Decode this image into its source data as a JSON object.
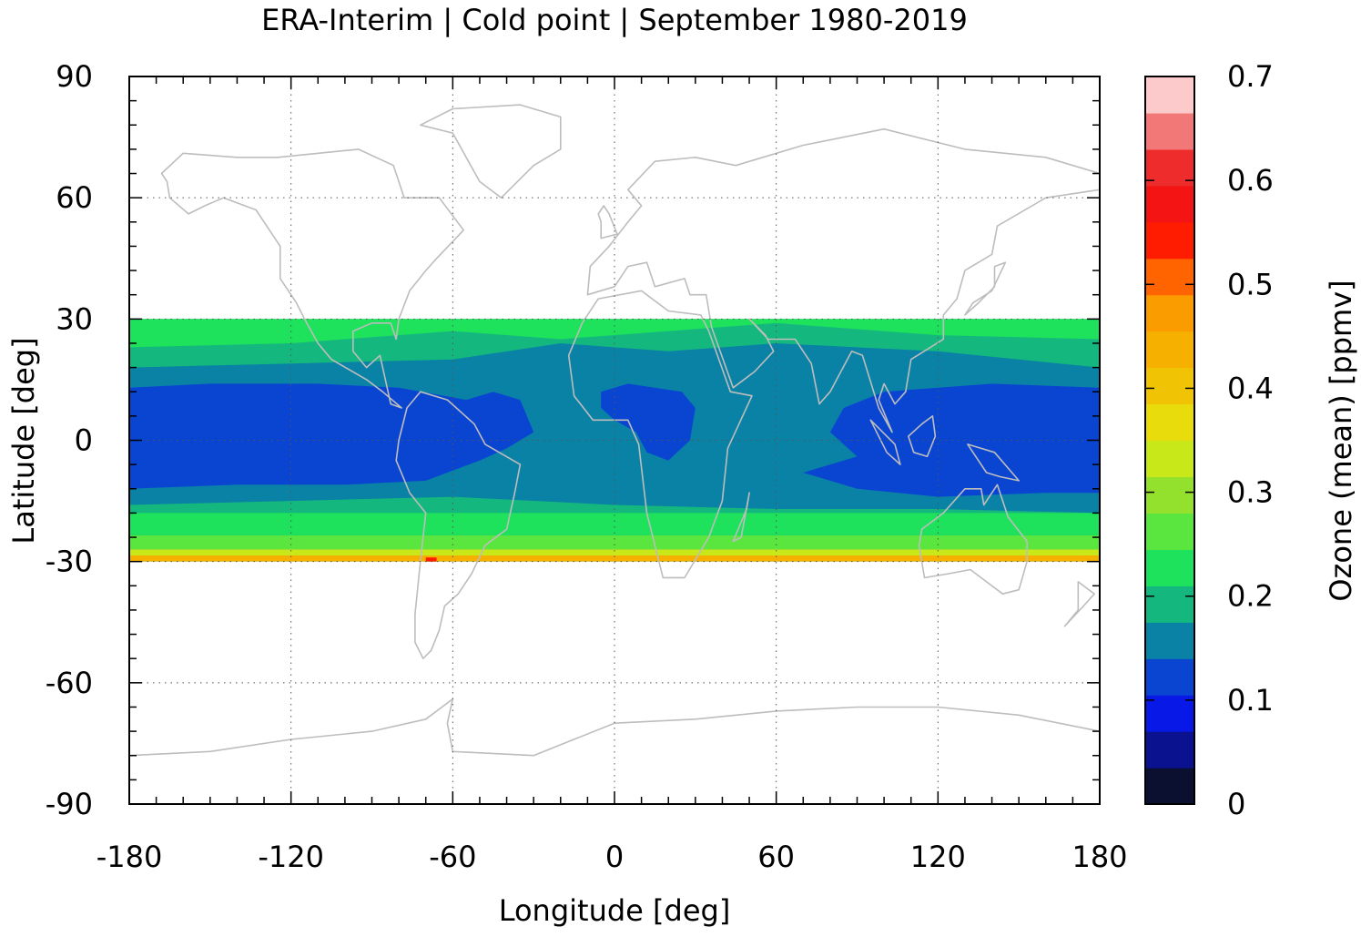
{
  "chart_data": {
    "type": "heatmap",
    "title": "ERA-Interim | Cold point | September 1980-2019",
    "xlabel": "Longitude [deg]",
    "ylabel": "Latitude [deg]",
    "colorbar_label": "Ozone (mean) [ppmv]",
    "xlim": [
      -180,
      180
    ],
    "ylim": [
      -90,
      90
    ],
    "x_ticks": [
      "-180",
      "-120",
      "-60",
      "0",
      "60",
      "120",
      "180"
    ],
    "y_ticks": [
      "90",
      "60",
      "30",
      "0",
      "-30",
      "-60",
      "-90"
    ],
    "colorbar_range": [
      0,
      0.7
    ],
    "colorbar_ticks": [
      "0.7",
      "0.6",
      "0.5",
      "0.4",
      "0.3",
      "0.2",
      "0.1",
      "0"
    ],
    "data_lat_range": [
      -30,
      30
    ],
    "grid": true,
    "background_map": "coastlines (gray)",
    "colorbar_colors": [
      "#0b0f30",
      "#0a128f",
      "#0818e6",
      "#0a45d2",
      "#0a82a6",
      "#14b87e",
      "#1ee15c",
      "#5ae63f",
      "#93e02d",
      "#c8e81a",
      "#e8dc0c",
      "#f0c404",
      "#f6b000",
      "#fa9c00",
      "#ff6400",
      "#ff1c00",
      "#f41414",
      "#ee2c2c",
      "#f27878",
      "#fccaca"
    ],
    "field_colors": {
      "very_low": "#0a45d2",
      "low": "#0a82a6",
      "mid": "#14b87e",
      "mid_high": "#1ee15c",
      "high": "#5ae63f",
      "higher": "#c8e81a",
      "highest": "#f6b000",
      "peak": "#ff1c00"
    },
    "coastline_color": "#bdbdbd"
  }
}
